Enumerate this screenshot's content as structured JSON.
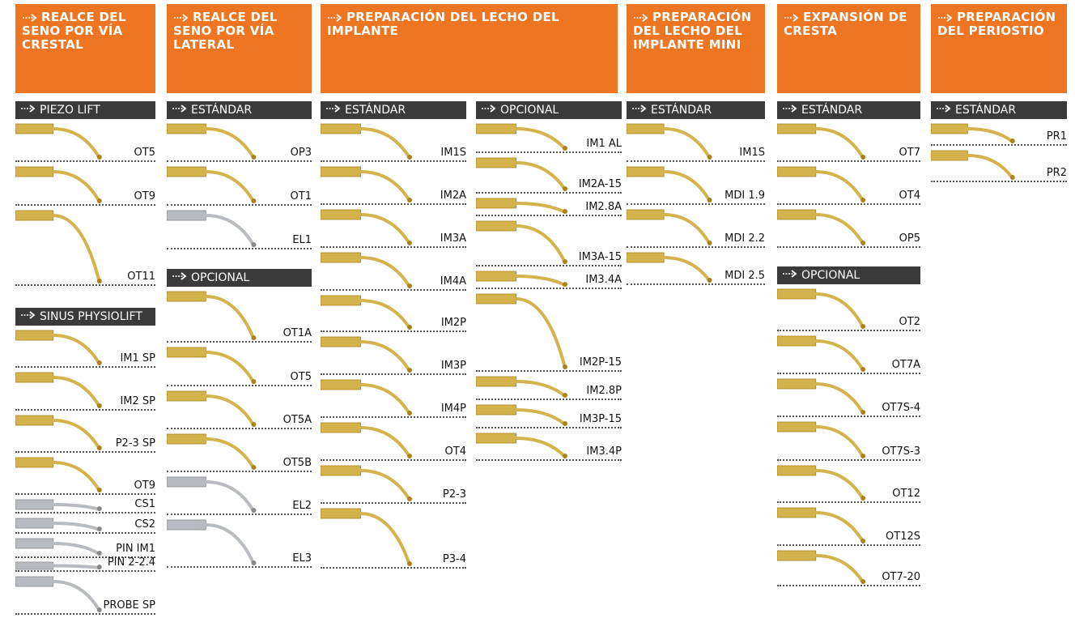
{
  "columns": [
    {
      "title": "REALCE DEL SENO POR VÍA CRESTAL",
      "sections": [
        {
          "label": "PIEZO LIFT",
          "items": [
            "OT5",
            "OT9",
            "OT11"
          ]
        },
        {
          "label": "SINUS PHYSIOLIFT",
          "items": [
            "IM1 SP",
            "IM2 SP",
            "P2-3 SP",
            "OT9",
            "CS1",
            "CS2",
            "PIN IM1",
            "PIN 2-2.4",
            "PROBE SP"
          ]
        }
      ]
    },
    {
      "title": "REALCE DEL SENO POR VÍA LATERAL",
      "sections": [
        {
          "label": "ESTÁNDAR",
          "items": [
            "OP3",
            "OT1",
            "EL1"
          ]
        },
        {
          "label": "OPCIONAL",
          "items": [
            "OT1A",
            "OT5",
            "OT5A",
            "OT5B",
            "EL2",
            "EL3"
          ]
        }
      ]
    },
    {
      "title": "PREPARACIÓN DEL LECHO DEL IMPLANTE",
      "sections": [
        {
          "label": "ESTÁNDAR",
          "items": [
            "IM1S",
            "IM2A",
            "IM3A",
            "IM4A",
            "IM2P",
            "IM3P",
            "IM4P",
            "OT4",
            "P2-3",
            "P3-4"
          ]
        },
        {
          "label": "OPCIONAL",
          "items": [
            "IM1 AL",
            "IM2A-15",
            "IM2.8A",
            "IM3A-15",
            "IM3.4A",
            "IM2P-15",
            "IM2.8P",
            "IM3P-15",
            "IM3.4P"
          ]
        }
      ]
    },
    {
      "title": "PREPARACIÓN DEL LECHO DEL IMPLANTE MINI",
      "sections": [
        {
          "label": "ESTÁNDAR",
          "items": [
            "IM1S",
            "MDI 1.9",
            "MDI 2.2",
            "MDI 2.5"
          ]
        }
      ]
    },
    {
      "title": "EXPANSIÓN DE CRESTA",
      "sections": [
        {
          "label": "ESTÁNDAR",
          "items": [
            "OT7",
            "OT4",
            "OP5"
          ]
        },
        {
          "label": "OPCIONAL",
          "items": [
            "OT2",
            "OT7A",
            "OT7S-4",
            "OT7S-3",
            "OT12",
            "OT12S",
            "OT7-20"
          ]
        }
      ]
    },
    {
      "title": "PREPARACIÓN DEL PERIOSTIO",
      "sections": [
        {
          "label": "ESTÁNDAR",
          "items": [
            "PR1",
            "PR2"
          ]
        }
      ]
    }
  ]
}
